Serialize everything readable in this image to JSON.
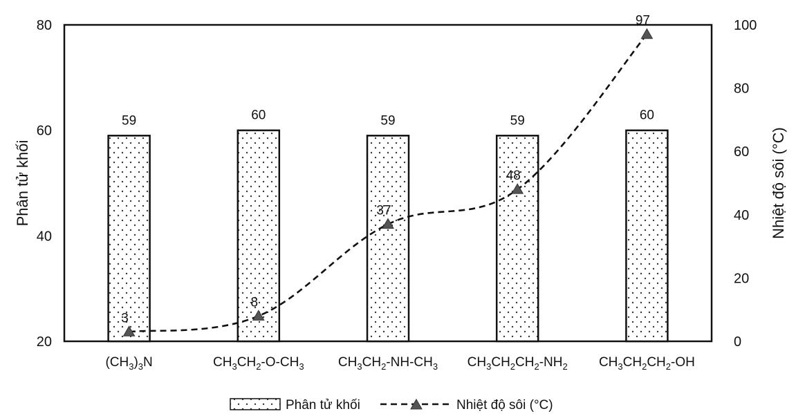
{
  "chart_data": {
    "type": "bar",
    "categories": [
      {
        "main": "(CH",
        "parts": [
          [
            "(CH",
            ""
          ],
          [
            "3",
            "sub"
          ],
          [
            ")",
            ""
          ],
          [
            "3",
            "sub"
          ],
          [
            "N",
            ""
          ]
        ]
      },
      {
        "main": "CH3CH2-O-CH3",
        "parts": [
          [
            "CH",
            ""
          ],
          [
            "3",
            "sub"
          ],
          [
            "CH",
            ""
          ],
          [
            "2",
            "sub"
          ],
          [
            "-O-CH",
            ""
          ],
          [
            "3",
            "sub"
          ]
        ]
      },
      {
        "main": "CH3CH2-NH-CH3",
        "parts": [
          [
            "CH",
            ""
          ],
          [
            "3",
            "sub"
          ],
          [
            "CH",
            ""
          ],
          [
            "2",
            "sub"
          ],
          [
            "-NH-CH",
            ""
          ],
          [
            "3",
            "sub"
          ]
        ]
      },
      {
        "main": "CH3CH2CH2-NH2",
        "parts": [
          [
            "CH",
            ""
          ],
          [
            "3",
            "sub"
          ],
          [
            "CH",
            ""
          ],
          [
            "2",
            "sub"
          ],
          [
            "CH",
            ""
          ],
          [
            "2",
            "sub"
          ],
          [
            "-NH",
            ""
          ],
          [
            "2",
            "sub"
          ]
        ]
      },
      {
        "main": "CH3CH2CH2-OH",
        "parts": [
          [
            "CH",
            ""
          ],
          [
            "3",
            "sub"
          ],
          [
            "CH",
            ""
          ],
          [
            "2",
            "sub"
          ],
          [
            "CH",
            ""
          ],
          [
            "2",
            "sub"
          ],
          [
            "-OH",
            ""
          ]
        ]
      }
    ],
    "series": [
      {
        "name": "Phân tử khối",
        "kind": "bar",
        "axis": "left",
        "values": [
          59,
          60,
          59,
          59,
          60
        ]
      },
      {
        "name": "Nhiệt độ sôi (°C)",
        "kind": "line",
        "axis": "right",
        "values": [
          3,
          8,
          37,
          48,
          97
        ]
      }
    ],
    "ylabel": "Phân tử khối",
    "y2label": "Nhiệt độ sôi (°C)",
    "ylim": [
      20,
      80
    ],
    "y2lim": [
      0,
      100
    ],
    "yticks": [
      "20",
      "40",
      "60",
      "80"
    ],
    "y2ticks": [
      "0",
      "20",
      "40",
      "60",
      "80",
      "100"
    ],
    "legend_position": "bottom",
    "grid": false
  },
  "legend": {
    "bar_label": "Phân tử khối",
    "line_label": "Nhiệt độ sôi (°C)"
  }
}
